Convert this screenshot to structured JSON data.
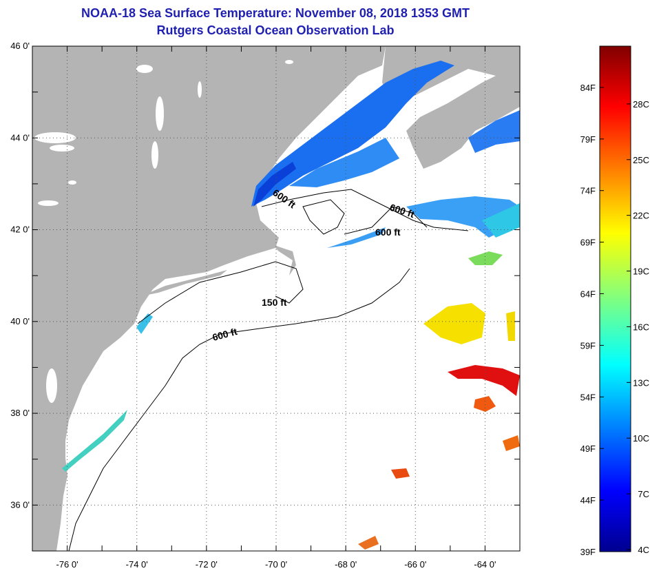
{
  "title": {
    "line1": "NOAA-18 Sea Surface Temperature:  November 08, 2018 1353 GMT",
    "line2": "Rutgers Coastal Ocean Observation Lab"
  },
  "map": {
    "lon_range": [
      -77,
      -63
    ],
    "lat_range": [
      35,
      46
    ],
    "lon_ticks": [
      "-76 0'",
      "-74 0'",
      "-72 0'",
      "-70 0'",
      "-68 0'",
      "-66 0'",
      "-64 0'"
    ],
    "lat_ticks": [
      "46 0'",
      "44 0'",
      "42 0'",
      "40 0'",
      "38 0'",
      "36 0'"
    ],
    "land_color": "#b4b4b4",
    "contour_labels": [
      "600 ft",
      "600 ft",
      "600 ft",
      "150 ft",
      "600 ft"
    ]
  },
  "colorbar": {
    "fahrenheit_labels": [
      "84F",
      "79F",
      "74F",
      "69F",
      "64F",
      "59F",
      "54F",
      "49F",
      "44F",
      "39F"
    ],
    "celsius_labels": [
      "28C",
      "25C",
      "22C",
      "19C",
      "16C",
      "13C",
      "10C",
      "7C",
      "4C"
    ]
  }
}
